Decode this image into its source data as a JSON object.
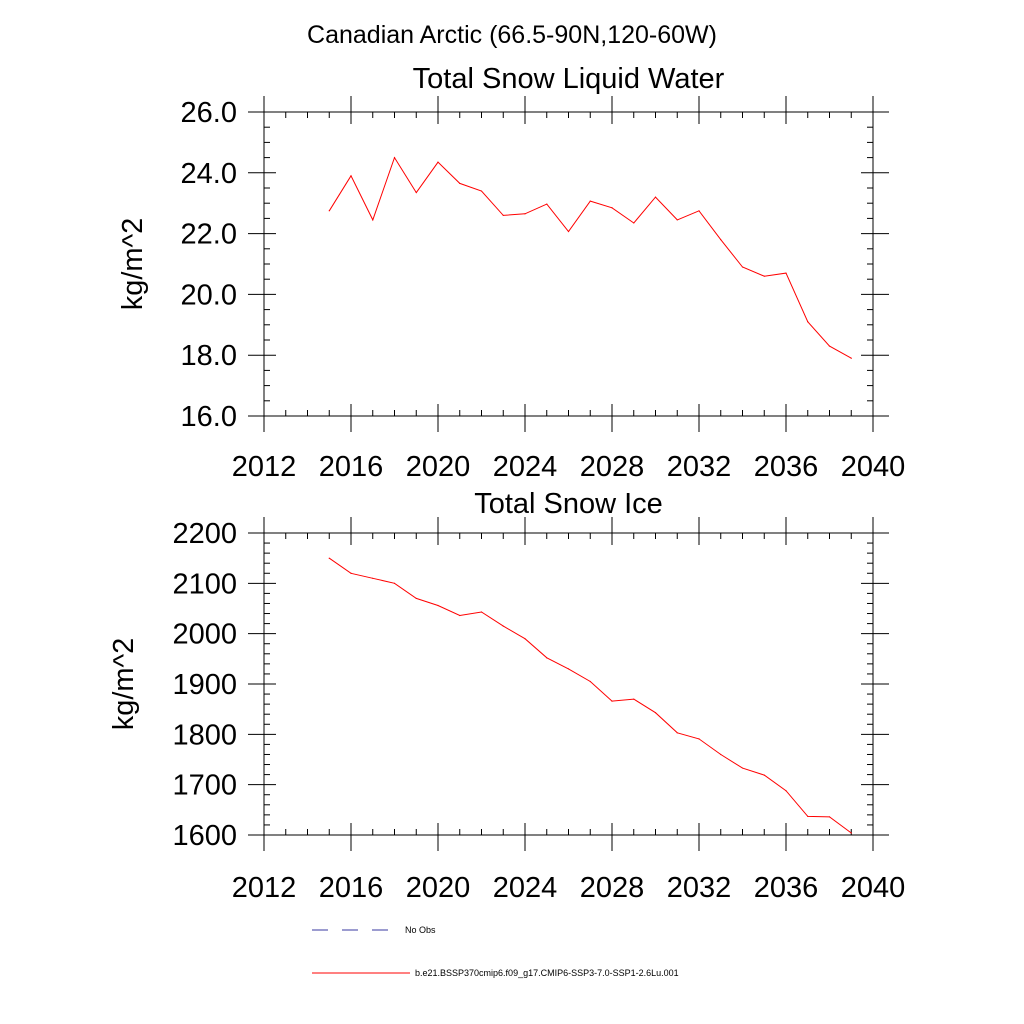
{
  "figure": {
    "suptitle": "Canadian Arctic (66.5-90N,120-60W)"
  },
  "colors": {
    "series": "#ff0000",
    "obs": "#3a3aa0",
    "axis": "#000000"
  },
  "legend": {
    "placement": "bottom-left",
    "entries": [
      {
        "label": "No Obs",
        "style": "dashed",
        "color": "#3a3aa0"
      },
      {
        "label": "b.e21.BSSP370cmip6.f09_g17.CMIP6-SSP3-7.0-SSP1-2.6Lu.001",
        "style": "solid",
        "color": "#ff0000"
      }
    ]
  },
  "chart_data": [
    {
      "type": "line",
      "title": "Total Snow Liquid Water",
      "xlabel": "",
      "ylabel": "kg/m^2",
      "xlim": [
        2012,
        2040
      ],
      "ylim": [
        16,
        26
      ],
      "xticks": [
        2012,
        2016,
        2020,
        2024,
        2028,
        2032,
        2036,
        2040
      ],
      "xtick_labels": [
        "2012",
        "2016",
        "2020",
        "2024",
        "2028",
        "2032",
        "2036",
        "2040"
      ],
      "yticks": [
        16,
        18,
        20,
        22,
        24,
        26
      ],
      "ytick_labels": [
        "16.0",
        "18.0",
        "20.0",
        "22.0",
        "24.0",
        "26.0"
      ],
      "x_minor_step": 1,
      "y_minor_step": 0.5,
      "grid": false,
      "series": [
        {
          "name": "b.e21.BSSP370cmip6.f09_g17.CMIP6-SSP3-7.0-SSP1-2.6Lu.001",
          "color": "#ff0000",
          "x": [
            2015,
            2016,
            2017,
            2018,
            2019,
            2020,
            2021,
            2022,
            2023,
            2024,
            2025,
            2026,
            2027,
            2028,
            2029,
            2030,
            2031,
            2032,
            2033,
            2034,
            2035,
            2036,
            2037,
            2038,
            2039
          ],
          "y": [
            22.75,
            23.9,
            22.45,
            24.5,
            23.35,
            24.35,
            23.65,
            23.4,
            22.6,
            22.65,
            22.97,
            22.07,
            23.07,
            22.85,
            22.35,
            23.2,
            22.45,
            22.75,
            21.8,
            20.9,
            20.6,
            20.7,
            19.1,
            18.3,
            17.9
          ]
        }
      ]
    },
    {
      "type": "line",
      "title": "Total Snow Ice",
      "xlabel": "",
      "ylabel": "kg/m^2",
      "xlim": [
        2012,
        2040
      ],
      "ylim": [
        1600,
        2200
      ],
      "xticks": [
        2012,
        2016,
        2020,
        2024,
        2028,
        2032,
        2036,
        2040
      ],
      "xtick_labels": [
        "2012",
        "2016",
        "2020",
        "2024",
        "2028",
        "2032",
        "2036",
        "2040"
      ],
      "yticks": [
        1600,
        1700,
        1800,
        1900,
        2000,
        2100,
        2200
      ],
      "ytick_labels": [
        "1600",
        "1700",
        "1800",
        "1900",
        "2000",
        "2100",
        "2200"
      ],
      "x_minor_step": 1,
      "y_minor_step": 20,
      "grid": false,
      "series": [
        {
          "name": "b.e21.BSSP370cmip6.f09_g17.CMIP6-SSP3-7.0-SSP1-2.6Lu.001",
          "color": "#ff0000",
          "x": [
            2015,
            2016,
            2017,
            2018,
            2019,
            2020,
            2021,
            2022,
            2023,
            2024,
            2025,
            2026,
            2027,
            2028,
            2029,
            2030,
            2031,
            2032,
            2033,
            2034,
            2035,
            2036,
            2037,
            2038,
            2039
          ],
          "y": [
            2150,
            2120,
            2110,
            2100,
            2070,
            2056,
            2036,
            2043,
            2015,
            1990,
            1952,
            1930,
            1905,
            1866,
            1870,
            1843,
            1803,
            1791,
            1760,
            1733,
            1719,
            1688,
            1637,
            1636,
            1604
          ]
        }
      ]
    }
  ]
}
